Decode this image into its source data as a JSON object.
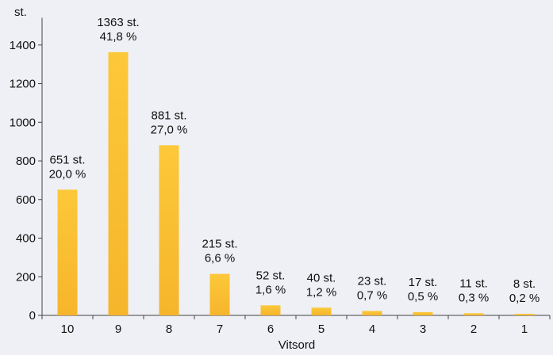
{
  "chart_data": {
    "type": "bar",
    "ylabel": "st.",
    "xlabel": "Vitsord",
    "categories": [
      "10",
      "9",
      "8",
      "7",
      "6",
      "5",
      "4",
      "3",
      "2",
      "1"
    ],
    "values": [
      651,
      1363,
      881,
      215,
      52,
      40,
      23,
      17,
      11,
      8
    ],
    "label_counts": [
      "651 st.",
      "1363 st.",
      "881 st.",
      "215 st.",
      "52 st.",
      "40 st.",
      "23 st.",
      "17 st.",
      "11 st.",
      "8 st."
    ],
    "label_percents": [
      "20,0 %",
      "41,8 %",
      "27,0 %",
      "6,6 %",
      "1,6 %",
      "1,2 %",
      "0,7 %",
      "0,5 %",
      "0,3 %",
      "0,2 %"
    ],
    "ylim": [
      0,
      1500
    ],
    "yticks": [
      0,
      200,
      400,
      600,
      800,
      1000,
      1200,
      1400
    ],
    "grid": false,
    "colors": {
      "bar_top": "#fcc839",
      "bar_bottom": "#f6b52c",
      "background": "#eef0f5",
      "axis": "#444444"
    }
  }
}
